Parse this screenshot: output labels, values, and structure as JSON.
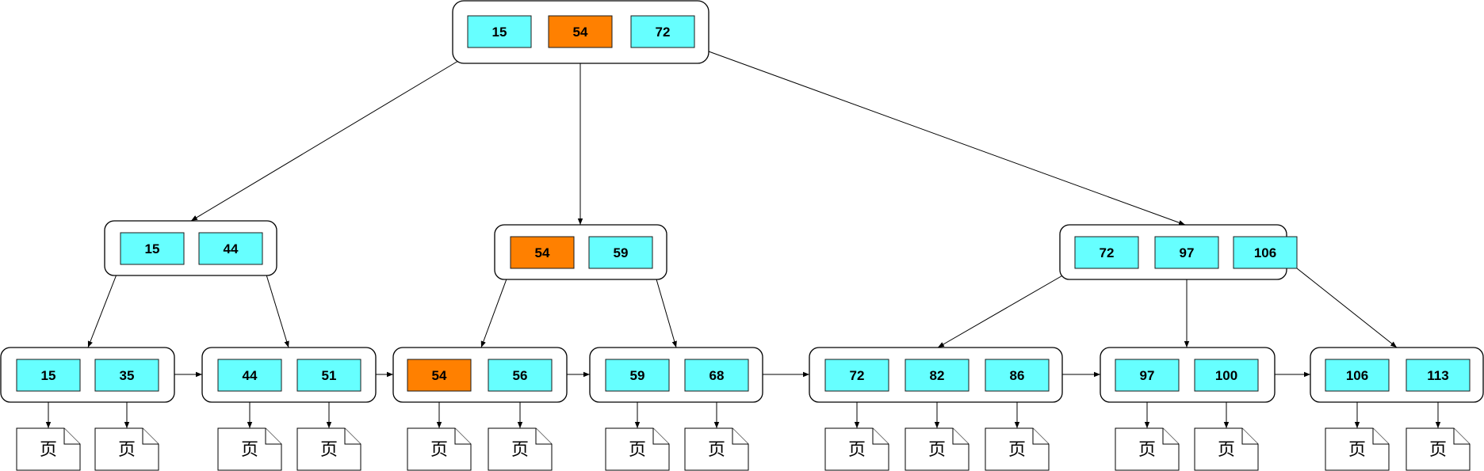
{
  "colors": {
    "key_fill": "#66ffff",
    "highlight_fill": "#ff8000",
    "outline": "#000000"
  },
  "page_label": "页",
  "root": {
    "keys": [
      {
        "value": "15",
        "highlight": false
      },
      {
        "value": "54",
        "highlight": true
      },
      {
        "value": "72",
        "highlight": false
      }
    ]
  },
  "internal": [
    {
      "keys": [
        {
          "value": "15",
          "highlight": false
        },
        {
          "value": "44",
          "highlight": false
        }
      ]
    },
    {
      "keys": [
        {
          "value": "54",
          "highlight": true
        },
        {
          "value": "59",
          "highlight": false
        }
      ]
    },
    {
      "keys": [
        {
          "value": "72",
          "highlight": false
        },
        {
          "value": "97",
          "highlight": false
        },
        {
          "value": "106",
          "highlight": false
        }
      ]
    }
  ],
  "leaves": [
    {
      "keys": [
        {
          "value": "15",
          "highlight": false
        },
        {
          "value": "35",
          "highlight": false
        }
      ]
    },
    {
      "keys": [
        {
          "value": "44",
          "highlight": false
        },
        {
          "value": "51",
          "highlight": false
        }
      ]
    },
    {
      "keys": [
        {
          "value": "54",
          "highlight": true
        },
        {
          "value": "56",
          "highlight": false
        }
      ]
    },
    {
      "keys": [
        {
          "value": "59",
          "highlight": false
        },
        {
          "value": "68",
          "highlight": false
        }
      ]
    },
    {
      "keys": [
        {
          "value": "72",
          "highlight": false
        },
        {
          "value": "82",
          "highlight": false
        },
        {
          "value": "86",
          "highlight": false
        }
      ]
    },
    {
      "keys": [
        {
          "value": "97",
          "highlight": false
        },
        {
          "value": "100",
          "highlight": false
        }
      ]
    },
    {
      "keys": [
        {
          "value": "106",
          "highlight": false
        },
        {
          "value": "113",
          "highlight": false
        }
      ]
    }
  ]
}
